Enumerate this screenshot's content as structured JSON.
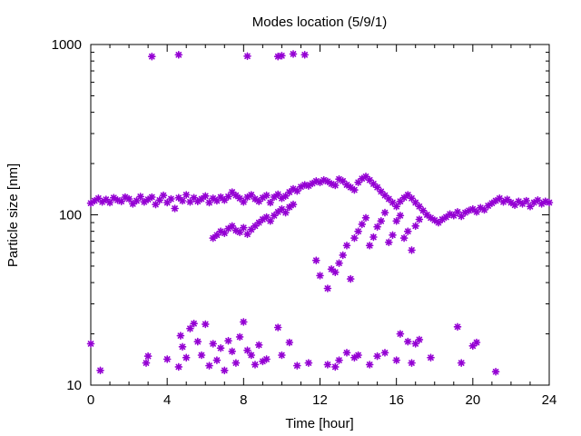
{
  "chart_data": {
    "type": "scatter",
    "title": "Modes location (5/9/1)",
    "xlabel": "Time [hour]",
    "ylabel": "Particle size [nm]",
    "xlim": [
      0,
      24
    ],
    "ylim": [
      10,
      1000
    ],
    "y_scale": "log",
    "x_ticks": [
      0,
      4,
      8,
      12,
      16,
      20,
      24
    ],
    "y_ticks": [
      10,
      100,
      1000
    ],
    "marker": "asterisk",
    "color": "#9400d3",
    "grid": false,
    "legend": "none",
    "series": [
      {
        "points": [
          [
            0.0,
            117
          ],
          [
            0.2,
            121
          ],
          [
            0.4,
            125
          ],
          [
            0.6,
            119
          ],
          [
            0.8,
            123
          ],
          [
            1.0,
            118
          ],
          [
            1.2,
            126
          ],
          [
            1.4,
            122
          ],
          [
            1.6,
            120
          ],
          [
            1.8,
            127
          ],
          [
            2.0,
            124
          ],
          [
            2.2,
            116
          ],
          [
            2.4,
            121
          ],
          [
            2.6,
            128
          ],
          [
            2.8,
            119
          ],
          [
            3.0,
            123
          ],
          [
            3.2,
            127
          ],
          [
            3.4,
            115
          ],
          [
            3.6,
            122
          ],
          [
            3.8,
            130
          ],
          [
            4.0,
            118
          ],
          [
            4.2,
            124
          ],
          [
            4.4,
            109
          ],
          [
            4.6,
            126
          ],
          [
            4.8,
            121
          ],
          [
            5.0,
            131
          ],
          [
            5.2,
            119
          ],
          [
            5.4,
            126
          ],
          [
            5.6,
            120
          ],
          [
            5.8,
            124
          ],
          [
            6.0,
            129
          ],
          [
            6.2,
            118
          ],
          [
            6.4,
            125
          ],
          [
            6.6,
            121
          ],
          [
            6.8,
            127
          ],
          [
            7.0,
            122
          ],
          [
            7.2,
            128
          ],
          [
            7.4,
            136
          ],
          [
            7.6,
            130
          ],
          [
            7.8,
            125
          ],
          [
            8.0,
            119
          ],
          [
            8.2,
            127
          ],
          [
            8.4,
            131
          ],
          [
            8.6,
            124
          ],
          [
            8.8,
            120
          ],
          [
            9.0,
            126
          ],
          [
            9.2,
            130
          ],
          [
            9.4,
            118
          ],
          [
            9.6,
            127
          ],
          [
            9.8,
            132
          ],
          [
            10.0,
            125
          ],
          [
            10.2,
            129
          ],
          [
            10.4,
            136
          ],
          [
            10.6,
            142
          ],
          [
            10.8,
            138
          ],
          [
            11.0,
            146
          ],
          [
            11.2,
            150
          ],
          [
            11.4,
            148
          ],
          [
            11.6,
            153
          ],
          [
            11.8,
            158
          ],
          [
            12.0,
            155
          ],
          [
            12.2,
            160
          ],
          [
            12.4,
            157
          ],
          [
            12.6,
            152
          ],
          [
            12.8,
            149
          ],
          [
            13.0,
            162
          ],
          [
            13.2,
            158
          ],
          [
            13.4,
            150
          ],
          [
            13.6,
            145
          ],
          [
            13.8,
            140
          ],
          [
            14.0,
            155
          ],
          [
            14.2,
            163
          ],
          [
            14.4,
            168
          ],
          [
            14.6,
            160
          ],
          [
            14.8,
            152
          ],
          [
            15.0,
            145
          ],
          [
            15.2,
            137
          ],
          [
            15.4,
            130
          ],
          [
            15.6,
            124
          ],
          [
            15.8,
            118
          ],
          [
            16.0,
            112
          ],
          [
            16.2,
            120
          ],
          [
            16.4,
            126
          ],
          [
            16.6,
            131
          ],
          [
            16.8,
            125
          ],
          [
            17.0,
            118
          ],
          [
            17.2,
            112
          ],
          [
            17.4,
            106
          ],
          [
            17.6,
            100
          ],
          [
            17.8,
            96
          ],
          [
            18.0,
            93
          ],
          [
            18.2,
            90
          ],
          [
            18.4,
            94
          ],
          [
            18.6,
            97
          ],
          [
            18.8,
            101
          ],
          [
            19.0,
            99
          ],
          [
            19.2,
            104
          ],
          [
            19.4,
            98
          ],
          [
            19.6,
            103
          ],
          [
            19.8,
            106
          ],
          [
            20.0,
            108
          ],
          [
            20.2,
            104
          ],
          [
            20.4,
            110
          ],
          [
            20.6,
            107
          ],
          [
            20.8,
            113
          ],
          [
            21.0,
            117
          ],
          [
            21.2,
            121
          ],
          [
            21.4,
            125
          ],
          [
            21.6,
            119
          ],
          [
            21.8,
            123
          ],
          [
            22.0,
            118
          ],
          [
            22.2,
            114
          ],
          [
            22.4,
            120
          ],
          [
            22.6,
            116
          ],
          [
            22.8,
            121
          ],
          [
            23.0,
            112
          ],
          [
            23.2,
            118
          ],
          [
            23.4,
            122
          ],
          [
            23.6,
            116
          ],
          [
            23.8,
            120
          ],
          [
            24.0,
            118
          ],
          [
            3.2,
            850
          ],
          [
            4.6,
            870
          ],
          [
            8.2,
            855
          ],
          [
            9.8,
            850
          ],
          [
            10.0,
            860
          ],
          [
            10.6,
            880
          ],
          [
            11.2,
            870
          ],
          [
            6.4,
            73
          ],
          [
            6.6,
            76
          ],
          [
            6.8,
            80
          ],
          [
            7.0,
            78
          ],
          [
            7.2,
            83
          ],
          [
            7.4,
            86
          ],
          [
            7.6,
            81
          ],
          [
            7.8,
            79
          ],
          [
            8.0,
            84
          ],
          [
            8.2,
            77
          ],
          [
            8.4,
            82
          ],
          [
            8.6,
            86
          ],
          [
            8.8,
            90
          ],
          [
            9.0,
            94
          ],
          [
            9.2,
            97
          ],
          [
            9.4,
            92
          ],
          [
            9.6,
            99
          ],
          [
            9.8,
            104
          ],
          [
            10.0,
            108
          ],
          [
            10.2,
            103
          ],
          [
            10.4,
            111
          ],
          [
            10.6,
            115
          ],
          [
            11.8,
            54
          ],
          [
            12.0,
            44
          ],
          [
            12.4,
            37
          ],
          [
            12.6,
            48
          ],
          [
            12.8,
            46
          ],
          [
            13.0,
            52
          ],
          [
            13.2,
            58
          ],
          [
            13.4,
            66
          ],
          [
            13.6,
            42
          ],
          [
            13.8,
            73
          ],
          [
            14.0,
            80
          ],
          [
            14.2,
            88
          ],
          [
            14.4,
            96
          ],
          [
            14.6,
            66
          ],
          [
            14.8,
            74
          ],
          [
            15.0,
            85
          ],
          [
            15.2,
            92
          ],
          [
            15.4,
            103
          ],
          [
            15.6,
            69
          ],
          [
            15.8,
            76
          ],
          [
            16.0,
            92
          ],
          [
            16.2,
            99
          ],
          [
            16.4,
            73
          ],
          [
            16.6,
            80
          ],
          [
            16.8,
            62
          ],
          [
            17.0,
            86
          ],
          [
            17.2,
            94
          ],
          [
            0.0,
            17.5
          ],
          [
            0.5,
            12.2
          ],
          [
            2.9,
            13.5
          ],
          [
            3.0,
            14.8
          ],
          [
            4.0,
            14.2
          ],
          [
            4.6,
            12.8
          ],
          [
            4.7,
            19.5
          ],
          [
            4.8,
            16.8
          ],
          [
            5.0,
            14.5
          ],
          [
            5.2,
            21.5
          ],
          [
            5.4,
            23.0
          ],
          [
            5.6,
            18.0
          ],
          [
            5.8,
            15.0
          ],
          [
            6.0,
            22.8
          ],
          [
            6.2,
            13.0
          ],
          [
            6.4,
            17.5
          ],
          [
            6.6,
            14.0
          ],
          [
            6.8,
            16.5
          ],
          [
            7.0,
            12.2
          ],
          [
            7.2,
            18.2
          ],
          [
            7.4,
            15.8
          ],
          [
            7.6,
            13.5
          ],
          [
            7.8,
            19.2
          ],
          [
            8.0,
            23.5
          ],
          [
            8.2,
            16.0
          ],
          [
            8.4,
            15.0
          ],
          [
            8.6,
            13.2
          ],
          [
            8.8,
            17.2
          ],
          [
            9.0,
            13.8
          ],
          [
            9.2,
            14.2
          ],
          [
            9.8,
            21.8
          ],
          [
            10.0,
            15.0
          ],
          [
            10.4,
            17.8
          ],
          [
            10.8,
            13.0
          ],
          [
            11.4,
            13.5
          ],
          [
            12.4,
            13.2
          ],
          [
            12.8,
            12.8
          ],
          [
            13.0,
            14.0
          ],
          [
            13.4,
            15.5
          ],
          [
            13.8,
            14.5
          ],
          [
            14.0,
            15.0
          ],
          [
            14.6,
            13.2
          ],
          [
            15.0,
            14.8
          ],
          [
            15.4,
            15.5
          ],
          [
            16.0,
            14.0
          ],
          [
            16.2,
            20.0
          ],
          [
            16.6,
            18.0
          ],
          [
            16.8,
            13.5
          ],
          [
            17.0,
            17.5
          ],
          [
            17.2,
            18.5
          ],
          [
            17.8,
            14.5
          ],
          [
            19.2,
            22.0
          ],
          [
            19.4,
            13.5
          ],
          [
            20.0,
            17.0
          ],
          [
            20.2,
            17.8
          ],
          [
            21.2,
            12.0
          ]
        ]
      }
    ]
  }
}
